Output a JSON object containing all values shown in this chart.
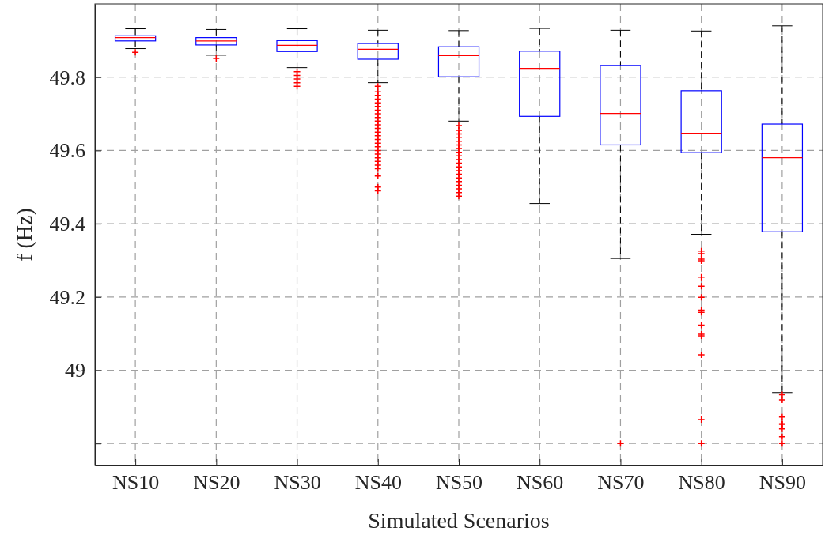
{
  "chart_data": {
    "type": "box",
    "xlabel": "Simulated Scenarios",
    "ylabel": "f (Hz)",
    "categories": [
      "NS10",
      "NS20",
      "NS30",
      "NS40",
      "NS50",
      "NS60",
      "NS70",
      "NS80",
      "NS90"
    ],
    "ylim": [
      48.74,
      50
    ],
    "yticks": [
      {
        "value": 48.8,
        "label": null
      },
      49,
      49.2,
      49.4,
      49.6,
      49.8
    ],
    "grid": true,
    "marker": "cross",
    "color": "#0000ff",
    "boxes": [
      {
        "low": 49.878,
        "q1": 49.899,
        "median": 49.908,
        "q3": 49.913,
        "high": 49.932,
        "outliers": [
          49.868
        ]
      },
      {
        "low": 49.86,
        "q1": 49.888,
        "median": 49.899,
        "q3": 49.908,
        "high": 49.93,
        "outliers": [
          49.851
        ]
      },
      {
        "low": 49.826,
        "q1": 49.87,
        "median": 49.887,
        "q3": 49.9,
        "high": 49.932,
        "outliers": [
          49.815,
          49.805,
          49.795,
          49.785,
          49.775
        ]
      },
      {
        "low": 49.785,
        "q1": 49.849,
        "median": 49.876,
        "q3": 49.892,
        "high": 49.928,
        "outliers": [
          49.775,
          49.76,
          49.75,
          49.74,
          49.73,
          49.72,
          49.71,
          49.7,
          49.69,
          49.68,
          49.67,
          49.66,
          49.65,
          49.64,
          49.63,
          49.62,
          49.61,
          49.6,
          49.59,
          49.58,
          49.57,
          49.56,
          49.55,
          49.53,
          49.5,
          49.49
        ]
      },
      {
        "low": 49.68,
        "q1": 49.801,
        "median": 49.859,
        "q3": 49.883,
        "high": 49.927,
        "outliers": [
          49.668,
          49.655,
          49.645,
          49.635,
          49.625,
          49.615,
          49.605,
          49.595,
          49.585,
          49.575,
          49.565,
          49.555,
          49.545,
          49.535,
          49.525,
          49.515,
          49.505,
          49.495,
          49.485,
          49.475
        ]
      },
      {
        "low": 49.455,
        "q1": 49.693,
        "median": 49.824,
        "q3": 49.871,
        "high": 49.933
      },
      {
        "low": 49.305,
        "q1": 49.615,
        "median": 49.701,
        "q3": 49.832,
        "high": 49.928,
        "outliers": [
          48.8
        ]
      },
      {
        "low": 49.371,
        "q1": 49.594,
        "median": 49.647,
        "q3": 49.763,
        "high": 49.926,
        "outliers": [
          49.325,
          49.318,
          49.303,
          49.299,
          49.254,
          49.229,
          49.199,
          49.164,
          49.158,
          49.123,
          49.098,
          49.094,
          49.042,
          48.865,
          48.8
        ]
      },
      {
        "low": 48.939,
        "q1": 49.378,
        "median": 49.58,
        "q3": 49.672,
        "high": 49.94,
        "outliers": [
          48.933,
          48.919,
          48.872,
          48.854,
          48.852,
          48.84,
          48.818,
          48.8
        ]
      }
    ]
  }
}
